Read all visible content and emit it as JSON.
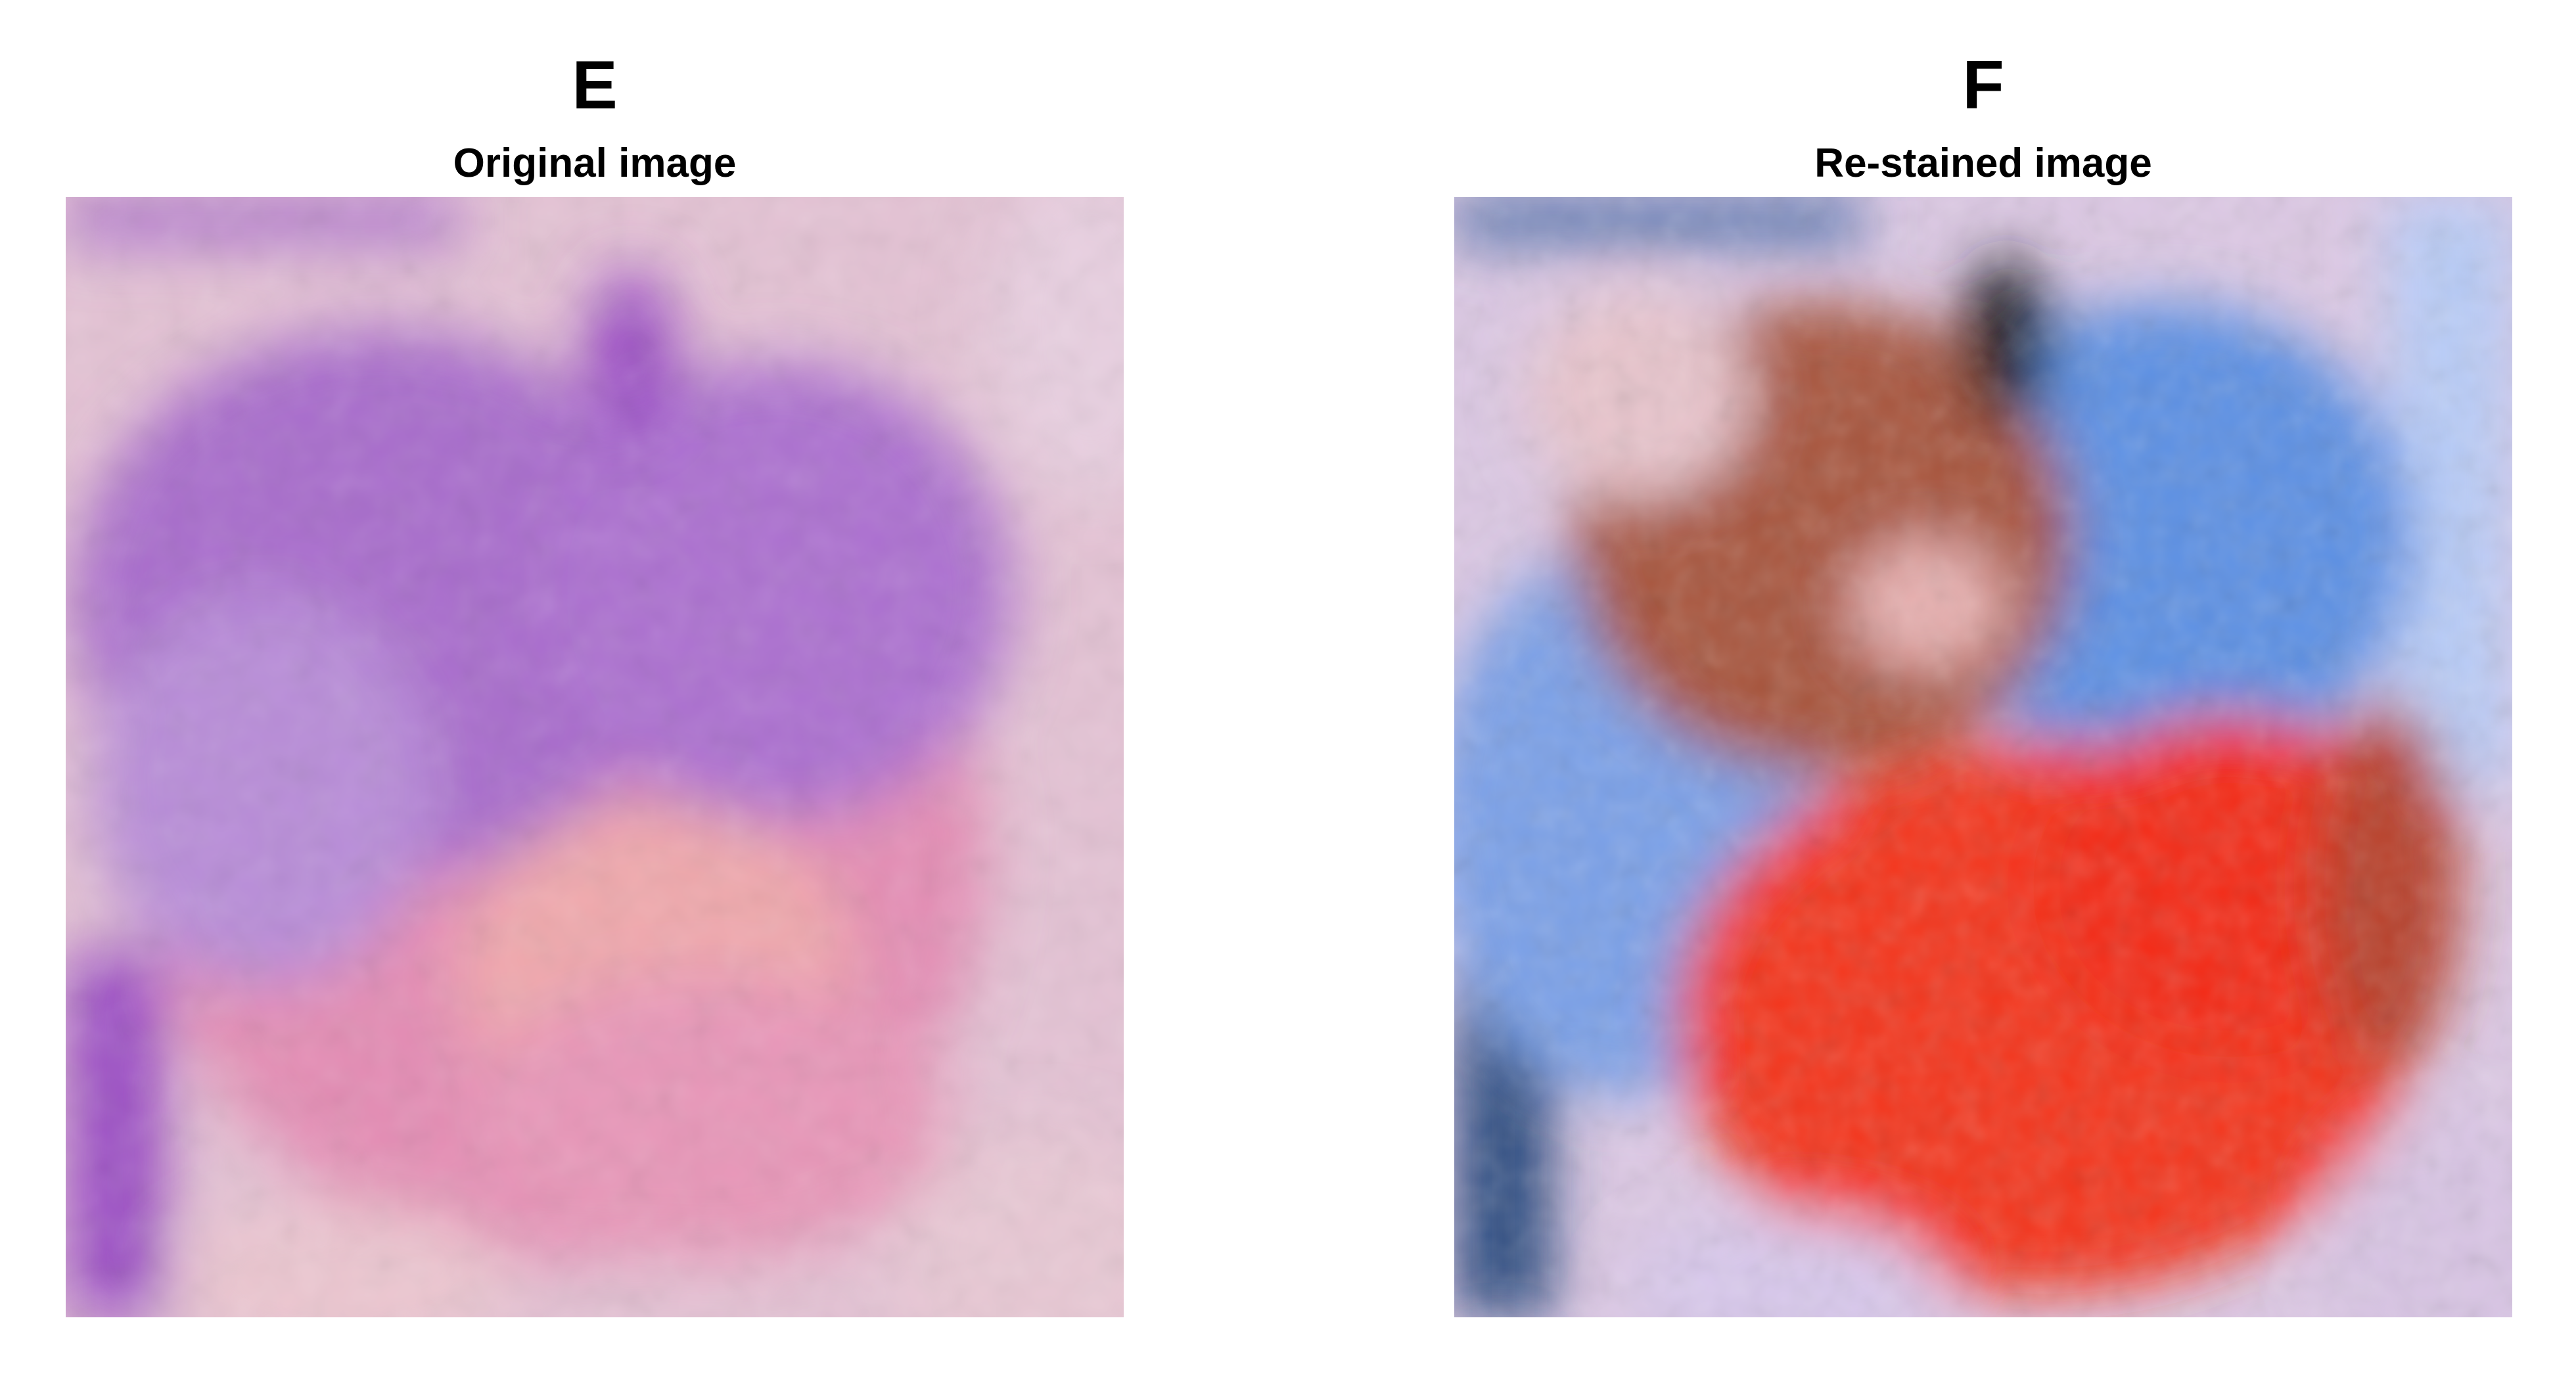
{
  "panels": [
    {
      "letter": "E",
      "subtitle": "Original image",
      "palette": {
        "background": "#e4c2d4",
        "purple": "#a86ccc",
        "deep_purple": "#9848c4",
        "pink": "#e48cb4",
        "peach": "#f0a8ac",
        "violet_blue": "#b88cd8"
      }
    },
    {
      "letter": "F",
      "subtitle": "Re-stained image",
      "palette": {
        "background": "#dcc8e4",
        "blue": "#5c90e4",
        "dark_blue": "#2c4c80",
        "red": "#f4361c",
        "dark_red": "#a8422c",
        "light_blue": "#a8c0f4"
      }
    }
  ]
}
